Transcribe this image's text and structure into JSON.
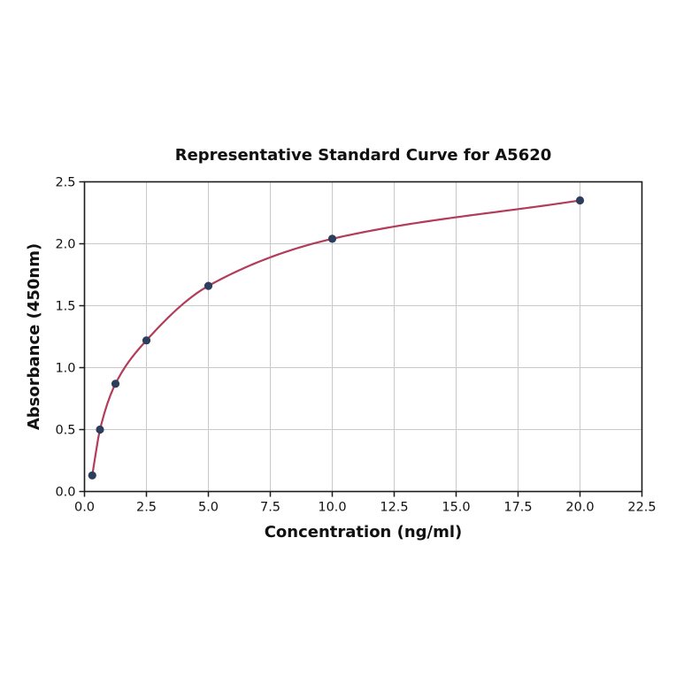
{
  "chart_data": {
    "type": "line",
    "title": "Representative Standard Curve for A5620",
    "xlabel": "Concentration (ng/ml)",
    "ylabel": "Absorbance (450nm)",
    "x": [
      0.313,
      0.625,
      1.25,
      2.5,
      5.0,
      10.0,
      20.0
    ],
    "y": [
      0.13,
      0.5,
      0.87,
      1.22,
      1.66,
      2.04,
      2.35
    ],
    "xlim": [
      0,
      22.5
    ],
    "ylim": [
      0,
      2.5
    ],
    "xticks": [
      0.0,
      2.5,
      5.0,
      7.5,
      10.0,
      12.5,
      15.0,
      17.5,
      20.0,
      22.5
    ],
    "yticks": [
      0.0,
      0.5,
      1.0,
      1.5,
      2.0,
      2.5
    ],
    "grid": true,
    "legend_position": "none",
    "marker_shape": "circle",
    "colors": {
      "line": "#b23c5a",
      "marker": "#2d3e5c",
      "grid": "#c9c9c9",
      "spine": "#1c1c1c",
      "tick": "#1c1c1c",
      "text": "#111111",
      "background": "#ffffff"
    }
  }
}
